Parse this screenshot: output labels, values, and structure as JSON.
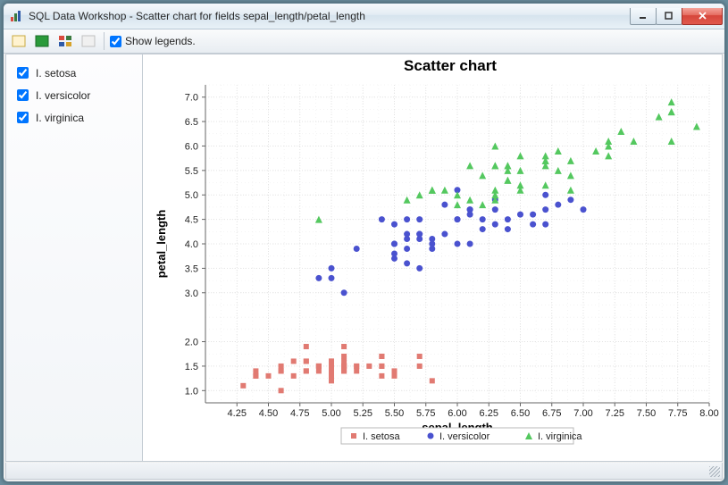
{
  "window": {
    "title": "SQL Data Workshop - Scatter chart for fields sepal_length/petal_length"
  },
  "toolbar": {
    "show_legends_label": "Show legends.",
    "show_legends_checked": true
  },
  "sidebar": {
    "items": [
      {
        "label": "I. setosa",
        "checked": true
      },
      {
        "label": "I. versicolor",
        "checked": true
      },
      {
        "label": "I. virginica",
        "checked": true
      }
    ]
  },
  "chart": {
    "type": "scatter",
    "title": "Scatter chart",
    "xlabel": "sepal_length",
    "ylabel": "petal_length",
    "background_color": "#ffffff",
    "grid_color": "#e4e4e4",
    "axis_color": "#666666",
    "xlim": [
      4.0,
      8.0
    ],
    "ylim": [
      0.75,
      7.25
    ],
    "xticks": [
      4.25,
      4.5,
      4.75,
      5.0,
      5.25,
      5.5,
      5.75,
      6.0,
      6.25,
      6.5,
      6.75,
      7.0,
      7.25,
      7.5,
      7.75,
      8.0
    ],
    "yticks": [
      1.0,
      1.5,
      2.0,
      3.0,
      3.5,
      4.0,
      4.5,
      5.0,
      5.5,
      6.0,
      6.5,
      7.0
    ],
    "title_fontsize": 17,
    "label_fontsize": 13,
    "tick_fontsize": 11,
    "series": [
      {
        "name": "I. setosa",
        "legend_label": "I. setosa",
        "marker": "square",
        "marker_size": 6,
        "color": "#e17a72",
        "data": [
          [
            5.1,
            1.4
          ],
          [
            4.9,
            1.4
          ],
          [
            4.7,
            1.3
          ],
          [
            4.6,
            1.5
          ],
          [
            5.0,
            1.4
          ],
          [
            5.4,
            1.7
          ],
          [
            4.6,
            1.4
          ],
          [
            5.0,
            1.5
          ],
          [
            4.4,
            1.4
          ],
          [
            4.9,
            1.5
          ],
          [
            5.4,
            1.5
          ],
          [
            4.8,
            1.6
          ],
          [
            4.8,
            1.4
          ],
          [
            4.3,
            1.1
          ],
          [
            5.8,
            1.2
          ],
          [
            5.7,
            1.5
          ],
          [
            5.4,
            1.3
          ],
          [
            5.1,
            1.4
          ],
          [
            5.7,
            1.7
          ],
          [
            5.1,
            1.5
          ],
          [
            5.4,
            1.7
          ],
          [
            5.1,
            1.5
          ],
          [
            4.6,
            1.0
          ],
          [
            5.1,
            1.7
          ],
          [
            4.8,
            1.9
          ],
          [
            5.0,
            1.6
          ],
          [
            5.0,
            1.6
          ],
          [
            5.2,
            1.5
          ],
          [
            5.2,
            1.4
          ],
          [
            4.7,
            1.6
          ],
          [
            4.8,
            1.6
          ],
          [
            5.4,
            1.5
          ],
          [
            5.2,
            1.5
          ],
          [
            5.5,
            1.4
          ],
          [
            4.9,
            1.5
          ],
          [
            5.0,
            1.2
          ],
          [
            5.5,
            1.3
          ],
          [
            4.9,
            1.5
          ],
          [
            4.4,
            1.3
          ],
          [
            5.1,
            1.5
          ],
          [
            5.0,
            1.3
          ],
          [
            4.5,
            1.3
          ],
          [
            4.4,
            1.3
          ],
          [
            5.0,
            1.6
          ],
          [
            5.1,
            1.9
          ],
          [
            4.8,
            1.4
          ],
          [
            5.1,
            1.6
          ],
          [
            4.6,
            1.4
          ],
          [
            5.3,
            1.5
          ],
          [
            5.0,
            1.4
          ]
        ]
      },
      {
        "name": "I. versicolor",
        "legend_label": "I. versicolor",
        "marker": "circle",
        "marker_size": 7,
        "color": "#4a52cf",
        "data": [
          [
            7.0,
            4.7
          ],
          [
            6.4,
            4.5
          ],
          [
            6.9,
            4.9
          ],
          [
            5.5,
            4.0
          ],
          [
            6.5,
            4.6
          ],
          [
            5.7,
            4.5
          ],
          [
            6.3,
            4.7
          ],
          [
            4.9,
            3.3
          ],
          [
            6.6,
            4.6
          ],
          [
            5.2,
            3.9
          ],
          [
            5.0,
            3.5
          ],
          [
            5.9,
            4.2
          ],
          [
            6.0,
            4.0
          ],
          [
            6.1,
            4.7
          ],
          [
            5.6,
            3.6
          ],
          [
            6.7,
            4.4
          ],
          [
            5.6,
            4.5
          ],
          [
            5.8,
            4.1
          ],
          [
            6.2,
            4.5
          ],
          [
            5.6,
            3.9
          ],
          [
            5.9,
            4.8
          ],
          [
            6.1,
            4.0
          ],
          [
            6.3,
            4.9
          ],
          [
            6.1,
            4.7
          ],
          [
            6.4,
            4.3
          ],
          [
            6.6,
            4.4
          ],
          [
            6.8,
            4.8
          ],
          [
            6.7,
            5.0
          ],
          [
            6.0,
            4.5
          ],
          [
            5.7,
            3.5
          ],
          [
            5.5,
            3.8
          ],
          [
            5.5,
            3.7
          ],
          [
            5.8,
            3.9
          ],
          [
            6.0,
            5.1
          ],
          [
            5.4,
            4.5
          ],
          [
            6.0,
            4.5
          ],
          [
            6.7,
            4.7
          ],
          [
            6.3,
            4.4
          ],
          [
            5.6,
            4.1
          ],
          [
            5.5,
            4.0
          ],
          [
            5.5,
            4.4
          ],
          [
            6.1,
            4.6
          ],
          [
            5.8,
            4.0
          ],
          [
            5.0,
            3.3
          ],
          [
            5.6,
            4.2
          ],
          [
            5.7,
            4.2
          ],
          [
            5.7,
            4.2
          ],
          [
            6.2,
            4.3
          ],
          [
            5.1,
            3.0
          ],
          [
            5.7,
            4.1
          ]
        ]
      },
      {
        "name": "I. virginica",
        "legend_label": "I. virginica",
        "marker": "triangle",
        "marker_size": 8,
        "color": "#54c85f",
        "data": [
          [
            6.3,
            6.0
          ],
          [
            5.8,
            5.1
          ],
          [
            7.1,
            5.9
          ],
          [
            6.3,
            5.6
          ],
          [
            6.5,
            5.8
          ],
          [
            7.6,
            6.6
          ],
          [
            4.9,
            4.5
          ],
          [
            7.3,
            6.3
          ],
          [
            6.7,
            5.8
          ],
          [
            7.2,
            6.1
          ],
          [
            6.5,
            5.1
          ],
          [
            6.4,
            5.3
          ],
          [
            6.8,
            5.5
          ],
          [
            5.7,
            5.0
          ],
          [
            5.8,
            5.1
          ],
          [
            6.4,
            5.3
          ],
          [
            6.5,
            5.5
          ],
          [
            7.7,
            6.7
          ],
          [
            7.7,
            6.9
          ],
          [
            6.0,
            5.0
          ],
          [
            6.9,
            5.7
          ],
          [
            5.6,
            4.9
          ],
          [
            7.7,
            6.7
          ],
          [
            6.3,
            4.9
          ],
          [
            6.7,
            5.7
          ],
          [
            7.2,
            6.0
          ],
          [
            6.2,
            4.8
          ],
          [
            6.1,
            4.9
          ],
          [
            6.4,
            5.6
          ],
          [
            7.2,
            5.8
          ],
          [
            7.4,
            6.1
          ],
          [
            7.9,
            6.4
          ],
          [
            6.4,
            5.6
          ],
          [
            6.3,
            5.1
          ],
          [
            6.1,
            5.6
          ],
          [
            7.7,
            6.1
          ],
          [
            6.3,
            5.6
          ],
          [
            6.4,
            5.5
          ],
          [
            6.0,
            4.8
          ],
          [
            6.9,
            5.4
          ],
          [
            6.7,
            5.6
          ],
          [
            6.9,
            5.1
          ],
          [
            5.8,
            5.1
          ],
          [
            6.8,
            5.9
          ],
          [
            6.7,
            5.7
          ],
          [
            6.7,
            5.2
          ],
          [
            6.3,
            5.0
          ],
          [
            6.5,
            5.2
          ],
          [
            6.2,
            5.4
          ],
          [
            5.9,
            5.1
          ]
        ]
      }
    ]
  }
}
